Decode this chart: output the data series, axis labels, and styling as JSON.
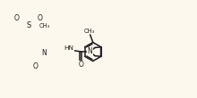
{
  "bg_color": "#fdf8ee",
  "line_color": "#1a1a1a",
  "highlight_color": "#6666aa",
  "figsize": [
    2.2,
    1.1
  ],
  "dpi": 100,
  "xlim": [
    0,
    220
  ],
  "ylim": [
    0,
    110
  ]
}
